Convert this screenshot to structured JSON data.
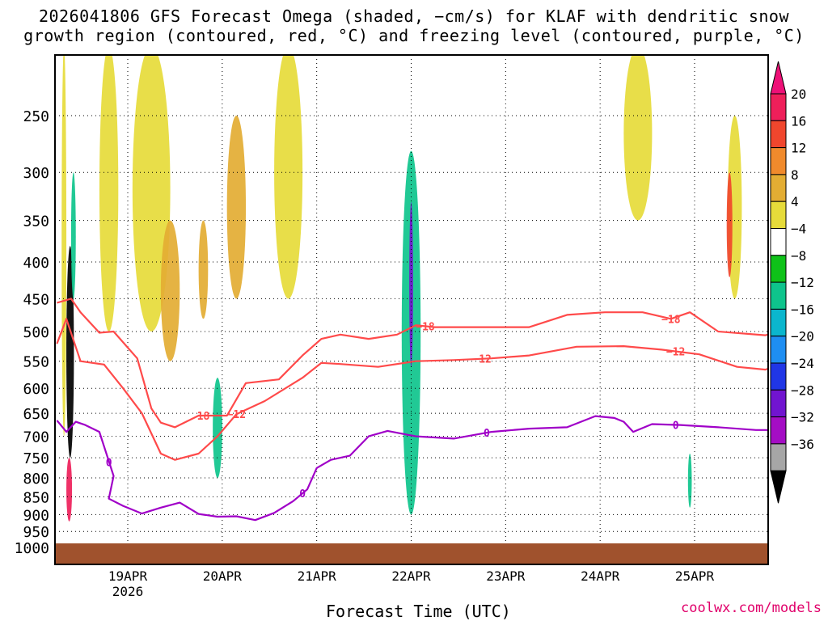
{
  "title_line1": "2026041806 GFS Forecast Omega (shaded, −cm/s) for KLAF with dendritic snow",
  "title_line2": "growth region (contoured, red, °C) and freezing level (contoured, purple, °C)",
  "credit": "coolwx.com/models",
  "chart_data": {
    "type": "heatmap",
    "title": "2026041806 GFS Forecast Omega (shaded, −cm/s) for KLAF",
    "xlabel": "Forecast Time (UTC)",
    "ylabel": "",
    "x_range_days": [
      0,
      7.75
    ],
    "y_range_hpa": [
      200,
      1025
    ],
    "y_ticks": [
      250,
      300,
      350,
      400,
      450,
      500,
      550,
      600,
      650,
      700,
      750,
      800,
      850,
      900,
      950,
      1000
    ],
    "x_ticks": [
      {
        "day": 0.75,
        "label": "19APR",
        "sub": "2026"
      },
      {
        "day": 1.75,
        "label": "20APR",
        "sub": ""
      },
      {
        "day": 2.75,
        "label": "21APR",
        "sub": ""
      },
      {
        "day": 3.75,
        "label": "22APR",
        "sub": ""
      },
      {
        "day": 4.75,
        "label": "23APR",
        "sub": ""
      },
      {
        "day": 5.75,
        "label": "24APR",
        "sub": ""
      },
      {
        "day": 6.75,
        "label": "25APR",
        "sub": ""
      }
    ],
    "colorbar": {
      "labels": [
        "20",
        "16",
        "12",
        "8",
        "4",
        "−4",
        "−8",
        "−12",
        "−16",
        "−20",
        "−24",
        "−28",
        "−32",
        "−36"
      ],
      "colors": [
        "#ee1f5a",
        "#f0462d",
        "#f08a2c",
        "#e3ad33",
        "#e6db3a",
        "#ffffff",
        "#0fc219",
        "#0ec48c",
        "#0bb6cd",
        "#1e8ef2",
        "#2036e6",
        "#7114d0",
        "#a40dc4",
        "#a6a6a6"
      ],
      "top_arrow_color": "#ee1077",
      "bottom_arrow_color": "#000000"
    },
    "omega_features": [
      {
        "x": [
          0.05,
          0.1
        ],
        "y": [
          200,
          700
        ],
        "value": 5
      },
      {
        "x": [
          0.45,
          0.65
        ],
        "y": [
          200,
          500
        ],
        "value": 6
      },
      {
        "x": [
          0.8,
          1.2
        ],
        "y": [
          200,
          500
        ],
        "value": 7
      },
      {
        "x": [
          1.1,
          1.3
        ],
        "y": [
          350,
          550
        ],
        "value": 9
      },
      {
        "x": [
          1.8,
          2.0
        ],
        "y": [
          250,
          450
        ],
        "value": 9
      },
      {
        "x": [
          2.3,
          2.6
        ],
        "y": [
          200,
          450
        ],
        "value": 5
      },
      {
        "x": [
          6.0,
          6.3
        ],
        "y": [
          200,
          350
        ],
        "value": 5
      },
      {
        "x": [
          7.1,
          7.25
        ],
        "y": [
          250,
          450
        ],
        "value": 5
      },
      {
        "x": [
          1.5,
          1.6
        ],
        "y": [
          350,
          480
        ],
        "value": 10
      },
      {
        "x": [
          0.1,
          0.18
        ],
        "y": [
          380,
          750
        ],
        "value": -36
      },
      {
        "x": [
          0.1,
          0.16
        ],
        "y": [
          750,
          920
        ],
        "value": 20
      },
      {
        "x": [
          0.15,
          0.2
        ],
        "y": [
          300,
          450
        ],
        "value": -10
      },
      {
        "x": [
          3.65,
          3.85
        ],
        "y": [
          280,
          900
        ],
        "value": -10
      },
      {
        "x": [
          3.73,
          3.77
        ],
        "y": [
          330,
          560
        ],
        "value": -26
      },
      {
        "x": [
          7.09,
          7.15
        ],
        "y": [
          300,
          420
        ],
        "value": 18
      },
      {
        "x": [
          1.65,
          1.75
        ],
        "y": [
          580,
          800
        ],
        "value": -10
      },
      {
        "x": [
          6.68,
          6.72
        ],
        "y": [
          740,
          880
        ],
        "value": -10
      }
    ],
    "series": [
      {
        "name": "-18C isotherm",
        "color": "#ff4a4a",
        "label": "−18",
        "x": [
          0.0,
          0.15,
          0.25,
          0.45,
          0.6,
          0.85,
          1.0,
          1.1,
          1.25,
          1.5,
          1.8,
          2.0,
          2.35,
          2.6,
          2.8,
          3.0,
          3.3,
          3.6,
          3.8,
          4.0,
          4.4,
          5.0,
          5.4,
          5.8,
          6.2,
          6.5,
          6.7,
          7.0,
          7.5,
          7.75
        ],
        "y": [
          456,
          450,
          470,
          502,
          500,
          545,
          640,
          670,
          680,
          655,
          655,
          590,
          583,
          540,
          512,
          505,
          512,
          505,
          490,
          493,
          493,
          493,
          474,
          470,
          470,
          480,
          470,
          500,
          506,
          497
        ]
      },
      {
        "name": "-12C isotherm",
        "color": "#ff4a4a",
        "label": "−12",
        "x": [
          0.0,
          0.1,
          0.25,
          0.5,
          0.7,
          0.9,
          1.1,
          1.25,
          1.5,
          1.7,
          1.9,
          2.2,
          2.6,
          2.8,
          3.0,
          3.4,
          3.8,
          4.2,
          4.6,
          5.0,
          5.5,
          6.0,
          6.4,
          6.8,
          7.2,
          7.5,
          7.75
        ],
        "y": [
          520,
          480,
          550,
          556,
          600,
          650,
          740,
          755,
          740,
          700,
          652,
          625,
          580,
          553,
          555,
          560,
          550,
          548,
          545,
          540,
          525,
          524,
          530,
          538,
          560,
          565,
          550
        ]
      },
      {
        "name": "0C freezing level",
        "color": "#a000c8",
        "label": "0",
        "x": [
          0.0,
          0.1,
          0.2,
          0.3,
          0.45,
          0.6,
          0.55,
          0.7,
          0.9,
          1.1,
          1.3,
          1.5,
          1.7,
          1.9,
          2.1,
          2.3,
          2.5,
          2.65,
          2.75,
          2.9,
          3.1,
          3.3,
          3.5,
          3.8,
          4.2,
          4.6,
          5.0,
          5.4,
          5.7,
          5.9,
          6.0,
          6.1,
          6.3,
          6.6,
          7.0,
          7.4,
          7.75
        ],
        "y": [
          665,
          690,
          668,
          675,
          690,
          795,
          855,
          875,
          897,
          880,
          866,
          898,
          906,
          905,
          916,
          895,
          862,
          830,
          775,
          755,
          745,
          700,
          688,
          700,
          705,
          690,
          683,
          680,
          656,
          660,
          668,
          690,
          673,
          675,
          680,
          686,
          686
        ]
      }
    ]
  }
}
